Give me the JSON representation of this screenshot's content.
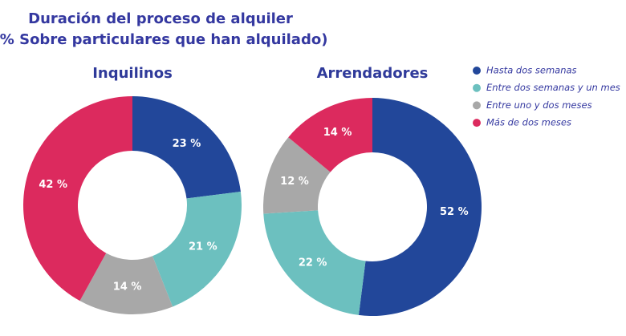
{
  "title": [
    "Duración del proceso de alquiler",
    "(% Sobre particulares que han alquilado)"
  ],
  "categories": [
    "Hasta dos semanas",
    "Entre dos semanas y un mes",
    "Entre uno y dos meses",
    "Más de dos meses"
  ],
  "colors": [
    "#22479a",
    "#6cc0bf",
    "#a8a8a8",
    "#dc2a5e"
  ],
  "chart_data": [
    {
      "type": "pie",
      "title": "Inquilinos",
      "values": [
        23,
        21,
        14,
        42
      ],
      "value_labels": [
        "23 %",
        "21 %",
        "14 %",
        "42 %"
      ]
    },
    {
      "type": "pie",
      "title": "Arrendadores",
      "values": [
        52,
        22,
        12,
        14
      ],
      "value_labels": [
        "52 %",
        "22 %",
        "12 %",
        "14 %"
      ]
    }
  ]
}
